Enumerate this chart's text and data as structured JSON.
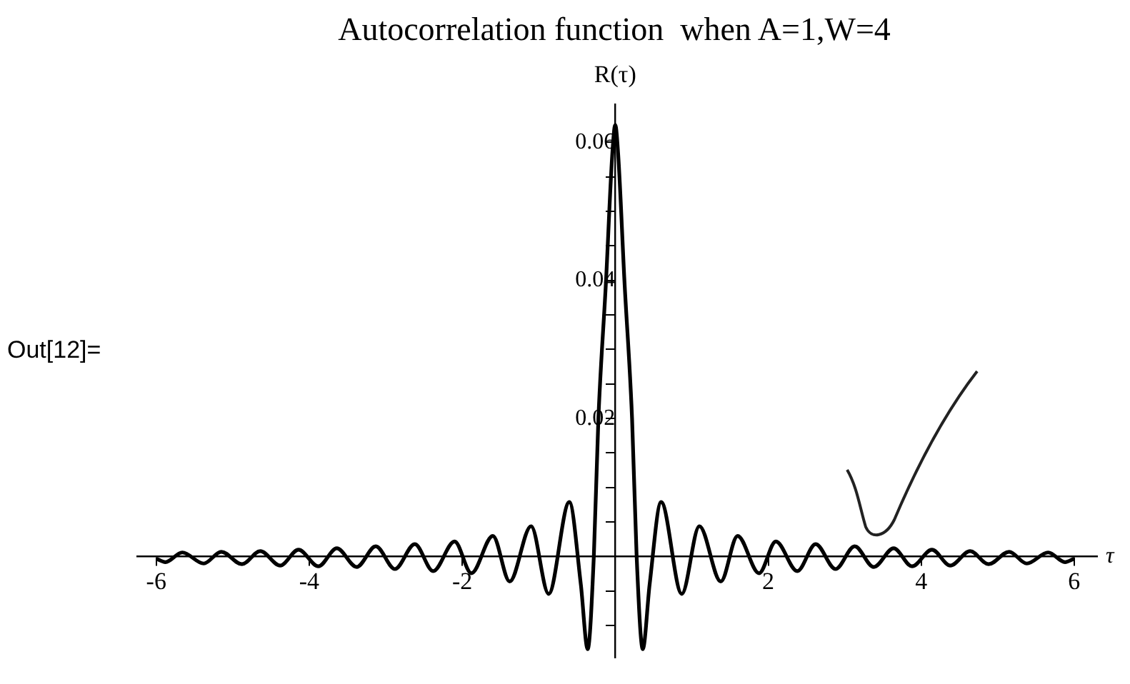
{
  "chart_data": {
    "type": "line",
    "title": "Autocorrelation function  when A=1,W=4",
    "xlabel": "τ",
    "ylabel": "R(τ)",
    "annotations": [
      "Out[12]="
    ],
    "x": [
      -6,
      -5.88,
      -5.66,
      -5.38,
      -5.15,
      -4.88,
      -4.64,
      -4.38,
      -4.14,
      -3.88,
      -3.64,
      -3.38,
      -3.13,
      -2.88,
      -2.62,
      -2.38,
      -2.1,
      -1.88,
      -1.6,
      -1.38,
      -1.1,
      -0.87,
      -0.6,
      -0.45,
      -0.36,
      -0.28,
      -0.22,
      -0.12,
      -0.04,
      0,
      0.04,
      0.12,
      0.22,
      0.28,
      0.36,
      0.45,
      0.6,
      0.87,
      1.1,
      1.38,
      1.6,
      1.88,
      2.1,
      2.38,
      2.62,
      2.88,
      3.13,
      3.38,
      3.64,
      3.88,
      4.14,
      4.38,
      4.64,
      4.88,
      5.15,
      5.38,
      5.66,
      5.88,
      6
    ],
    "series": [
      {
        "color": "#000000",
        "values": [
          -0.0003,
          -0.0008,
          0.0006,
          -0.001,
          0.0007,
          -0.0011,
          0.0008,
          -0.0013,
          0.001,
          -0.0014,
          0.0012,
          -0.0015,
          0.0015,
          -0.0018,
          0.0018,
          -0.0021,
          0.0022,
          -0.0024,
          0.003,
          -0.0036,
          0.0044,
          -0.0054,
          0.0079,
          -0.004,
          -0.0134,
          0,
          0.02,
          0.04,
          0.058,
          0.0625,
          0.058,
          0.04,
          0.02,
          0,
          -0.0134,
          -0.004,
          0.0079,
          -0.0054,
          0.0044,
          -0.0036,
          0.003,
          -0.0024,
          0.0022,
          -0.0021,
          0.0018,
          -0.0018,
          0.0015,
          -0.0015,
          0.0012,
          -0.0014,
          0.001,
          -0.0013,
          0.0008,
          -0.0011,
          0.0007,
          -0.001,
          0.0006,
          -0.0008,
          -0.0003
        ]
      }
    ],
    "xlim": [
      -6.25,
      6.3
    ],
    "ylim": [
      -0.0146,
      0.0655
    ],
    "xticks": [
      -6,
      -4,
      -2,
      2,
      4,
      6
    ],
    "yticks": [
      {
        "value": -0.01,
        "label": null
      },
      {
        "value": -0.005,
        "label": null
      },
      {
        "value": 0.005,
        "label": null
      },
      {
        "value": 0.01,
        "label": null
      },
      {
        "value": 0.015,
        "label": null
      },
      0.02,
      {
        "value": 0.025,
        "label": null
      },
      {
        "value": 0.03,
        "label": null
      },
      {
        "value": 0.035,
        "label": null
      },
      0.04,
      {
        "value": 0.045,
        "label": null
      },
      {
        "value": 0.05,
        "label": null
      },
      {
        "value": 0.055,
        "label": null
      },
      0.06
    ],
    "grid": false,
    "marker": "none",
    "line_style": "solid"
  }
}
